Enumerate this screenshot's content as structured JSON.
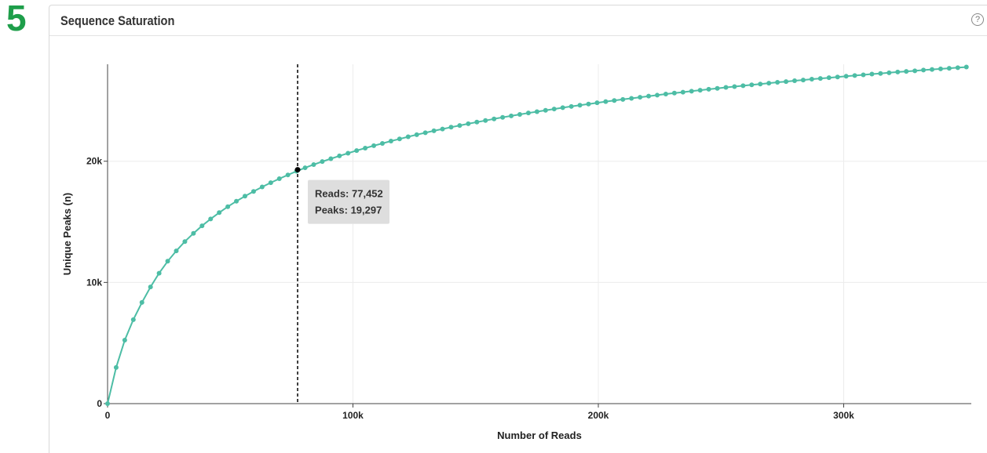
{
  "step": {
    "number": "5"
  },
  "panel": {
    "title": "Sequence Saturation",
    "help_glyph": "?"
  },
  "tooltip": {
    "reads_label": "Reads: 77,452",
    "peaks_label": "Peaks: 19,297"
  },
  "colors": {
    "series": "#4dbda5",
    "marker": "#000000",
    "step": "#1e9e4a"
  },
  "chart_data": {
    "type": "line",
    "title": "Sequence Saturation",
    "xlabel": "Number of Reads",
    "ylabel": "Unique Peaks (n)",
    "xlim": [
      0,
      352000
    ],
    "ylim": [
      0,
      28000
    ],
    "x_ticks": [
      {
        "value": 0,
        "label": "0"
      },
      {
        "value": 100000,
        "label": "100k"
      },
      {
        "value": 200000,
        "label": "200k"
      },
      {
        "value": 300000,
        "label": "300k"
      }
    ],
    "y_ticks": [
      {
        "value": 0,
        "label": "0"
      },
      {
        "value": 10000,
        "label": "10k"
      },
      {
        "value": 20000,
        "label": "20k"
      }
    ],
    "grid": true,
    "marker_line": {
      "x": 77452,
      "y": 19297
    },
    "series": [
      {
        "x": [
          0,
          3500,
          7000,
          10500,
          14000,
          17500,
          21000,
          24500,
          28000,
          31500,
          35000,
          38500,
          42000,
          45500,
          49000,
          52500,
          56000,
          59500,
          63000,
          66500,
          70000,
          73500,
          77000,
          80500,
          84000,
          87500,
          91000,
          94500,
          98000,
          101500,
          105000,
          108500,
          112000,
          115500,
          119000,
          122500,
          126000,
          129500,
          133000,
          136500,
          140000,
          143500,
          147000,
          150500,
          154000,
          157500,
          161000,
          164500,
          168000,
          171500,
          175000,
          178500,
          182000,
          185500,
          189000,
          192500,
          196000,
          199500,
          203000,
          206500,
          210000,
          213500,
          217000,
          220500,
          224000,
          227500,
          231000,
          234500,
          238000,
          241500,
          245000,
          248500,
          252000,
          255500,
          259000,
          262500,
          266000,
          269500,
          273000,
          276500,
          280000,
          283500,
          287000,
          290500,
          294000,
          297500,
          301000,
          304500,
          308000,
          311500,
          315000,
          318500,
          322000,
          325500,
          329000,
          332500,
          336000,
          339500,
          343000,
          346500,
          350000
        ],
        "y": [
          0,
          2980,
          5240,
          6930,
          8350,
          9630,
          10760,
          11750,
          12600,
          13370,
          14050,
          14670,
          15240,
          15760,
          16250,
          16700,
          17120,
          17510,
          17880,
          18230,
          18560,
          18870,
          19170,
          19460,
          19720,
          19970,
          20210,
          20440,
          20660,
          20880,
          21080,
          21280,
          21470,
          21660,
          21840,
          22020,
          22190,
          22350,
          22510,
          22660,
          22810,
          22950,
          23090,
          23230,
          23360,
          23490,
          23620,
          23740,
          23860,
          23980,
          24090,
          24200,
          24310,
          24420,
          24520,
          24620,
          24720,
          24820,
          24920,
          25010,
          25100,
          25190,
          25280,
          25370,
          25450,
          25540,
          25620,
          25700,
          25780,
          25860,
          25940,
          26010,
          26090,
          26160,
          26230,
          26300,
          26370,
          26440,
          26510,
          26570,
          26640,
          26700,
          26770,
          26830,
          26890,
          26950,
          27010,
          27070,
          27130,
          27190,
          27240,
          27300,
          27360,
          27410,
          27460,
          27520,
          27570,
          27620,
          27670,
          27720,
          27770
        ]
      }
    ]
  }
}
